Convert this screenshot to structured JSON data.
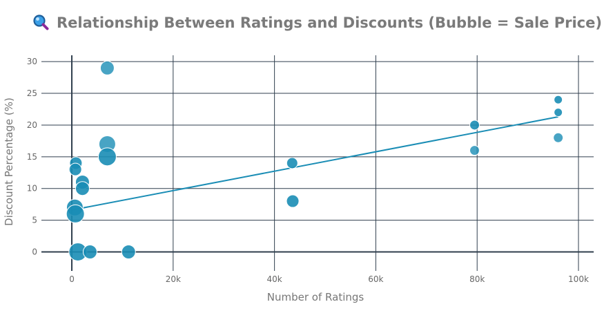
{
  "chart_data": {
    "type": "scatter",
    "title": "Relationship Between Ratings and Discounts (Bubble = Sale Price)",
    "title_icon": "magnifier-icon",
    "xlabel": "Number of Ratings",
    "ylabel": "Discount Percentage (%)",
    "xlim": [
      -6000,
      103000
    ],
    "ylim": [
      -3,
      31
    ],
    "xticks": [
      0,
      20000,
      40000,
      60000,
      80000,
      100000
    ],
    "xtick_labels": [
      "0",
      "20k",
      "40k",
      "60k",
      "80k",
      "100k"
    ],
    "yticks": [
      0,
      5,
      10,
      15,
      20,
      25,
      30
    ],
    "ytick_labels": [
      "0",
      "5",
      "10",
      "15",
      "20",
      "25",
      "30"
    ],
    "grid": true,
    "legend": "none",
    "colors": {
      "point": "#1a8db5",
      "point_outline": "#ffffff",
      "trendline": "#1a8db5",
      "grid": "#2f3e4d",
      "zero_line": "#2f3e4d"
    },
    "points": [
      {
        "x": 7000,
        "y": 29,
        "size": 10,
        "opacity": 0.8
      },
      {
        "x": 7000,
        "y": 17,
        "size": 12,
        "opacity": 0.8
      },
      {
        "x": 7000,
        "y": 15,
        "size": 13,
        "opacity": 0.9
      },
      {
        "x": 800,
        "y": 14,
        "size": 9,
        "opacity": 0.9
      },
      {
        "x": 700,
        "y": 13,
        "size": 9,
        "opacity": 0.9
      },
      {
        "x": 2100,
        "y": 11,
        "size": 10,
        "opacity": 0.9
      },
      {
        "x": 2100,
        "y": 10,
        "size": 10,
        "opacity": 0.9
      },
      {
        "x": 600,
        "y": 7,
        "size": 12,
        "opacity": 0.9
      },
      {
        "x": 700,
        "y": 6,
        "size": 13,
        "opacity": 0.9
      },
      {
        "x": 1200,
        "y": 0,
        "size": 13,
        "opacity": 0.9
      },
      {
        "x": 3600,
        "y": 0,
        "size": 10,
        "opacity": 0.9
      },
      {
        "x": 11200,
        "y": 0,
        "size": 10,
        "opacity": 0.9
      },
      {
        "x": 43500,
        "y": 14,
        "size": 8,
        "opacity": 0.9
      },
      {
        "x": 43600,
        "y": 8,
        "size": 9,
        "opacity": 0.9
      },
      {
        "x": 79500,
        "y": 20,
        "size": 7,
        "opacity": 0.9
      },
      {
        "x": 79500,
        "y": 16,
        "size": 7,
        "opacity": 0.8
      },
      {
        "x": 96000,
        "y": 24,
        "size": 6,
        "opacity": 0.9
      },
      {
        "x": 96000,
        "y": 22,
        "size": 6,
        "opacity": 0.9
      },
      {
        "x": 96000,
        "y": 18,
        "size": 7,
        "opacity": 0.8
      }
    ],
    "trendline": {
      "x": [
        0,
        96000
      ],
      "y": [
        6.6,
        21.3
      ]
    }
  }
}
